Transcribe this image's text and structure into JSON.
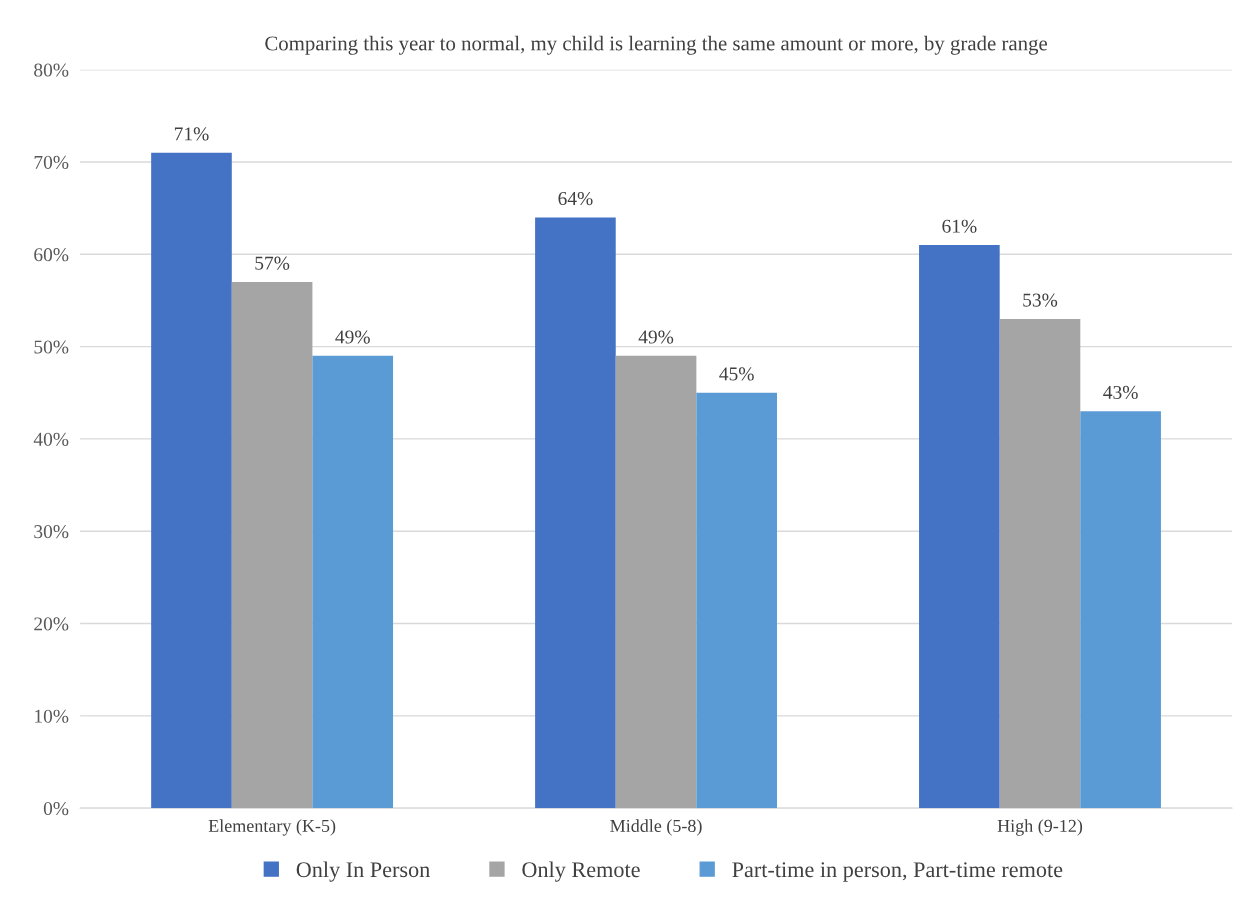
{
  "chart_data": {
    "type": "bar",
    "title": "Comparing this year to normal, my child is learning the same amount or more, by grade range",
    "categories": [
      "Elementary (K-5)",
      "Middle (5-8)",
      "High (9-12)"
    ],
    "series": [
      {
        "name": "Only In Person",
        "color": "#4472c4",
        "values": [
          71,
          64,
          61
        ]
      },
      {
        "name": "Only Remote",
        "color": "#a5a5a5",
        "values": [
          57,
          49,
          53
        ]
      },
      {
        "name": "Part-time in person, Part-time remote",
        "color": "#5b9bd5",
        "values": [
          49,
          45,
          43
        ]
      }
    ],
    "ylim": [
      0,
      80
    ],
    "yticks": [
      {
        "value": 0,
        "label": "0%"
      },
      {
        "value": 10,
        "label": "10%"
      },
      {
        "value": 20,
        "label": "20%"
      },
      {
        "value": 30,
        "label": "30%"
      },
      {
        "value": 40,
        "label": "40%"
      },
      {
        "value": 50,
        "label": "50%"
      },
      {
        "value": 60,
        "label": "60%"
      },
      {
        "value": 70,
        "label": "70%"
      },
      {
        "value": 80,
        "label": "80%"
      }
    ],
    "grid": "y",
    "legend": "bottom",
    "value_labels": [
      [
        "71%",
        "64%",
        "61%"
      ],
      [
        "57%",
        "49%",
        "53%"
      ],
      [
        "49%",
        "45%",
        "43%"
      ]
    ]
  }
}
